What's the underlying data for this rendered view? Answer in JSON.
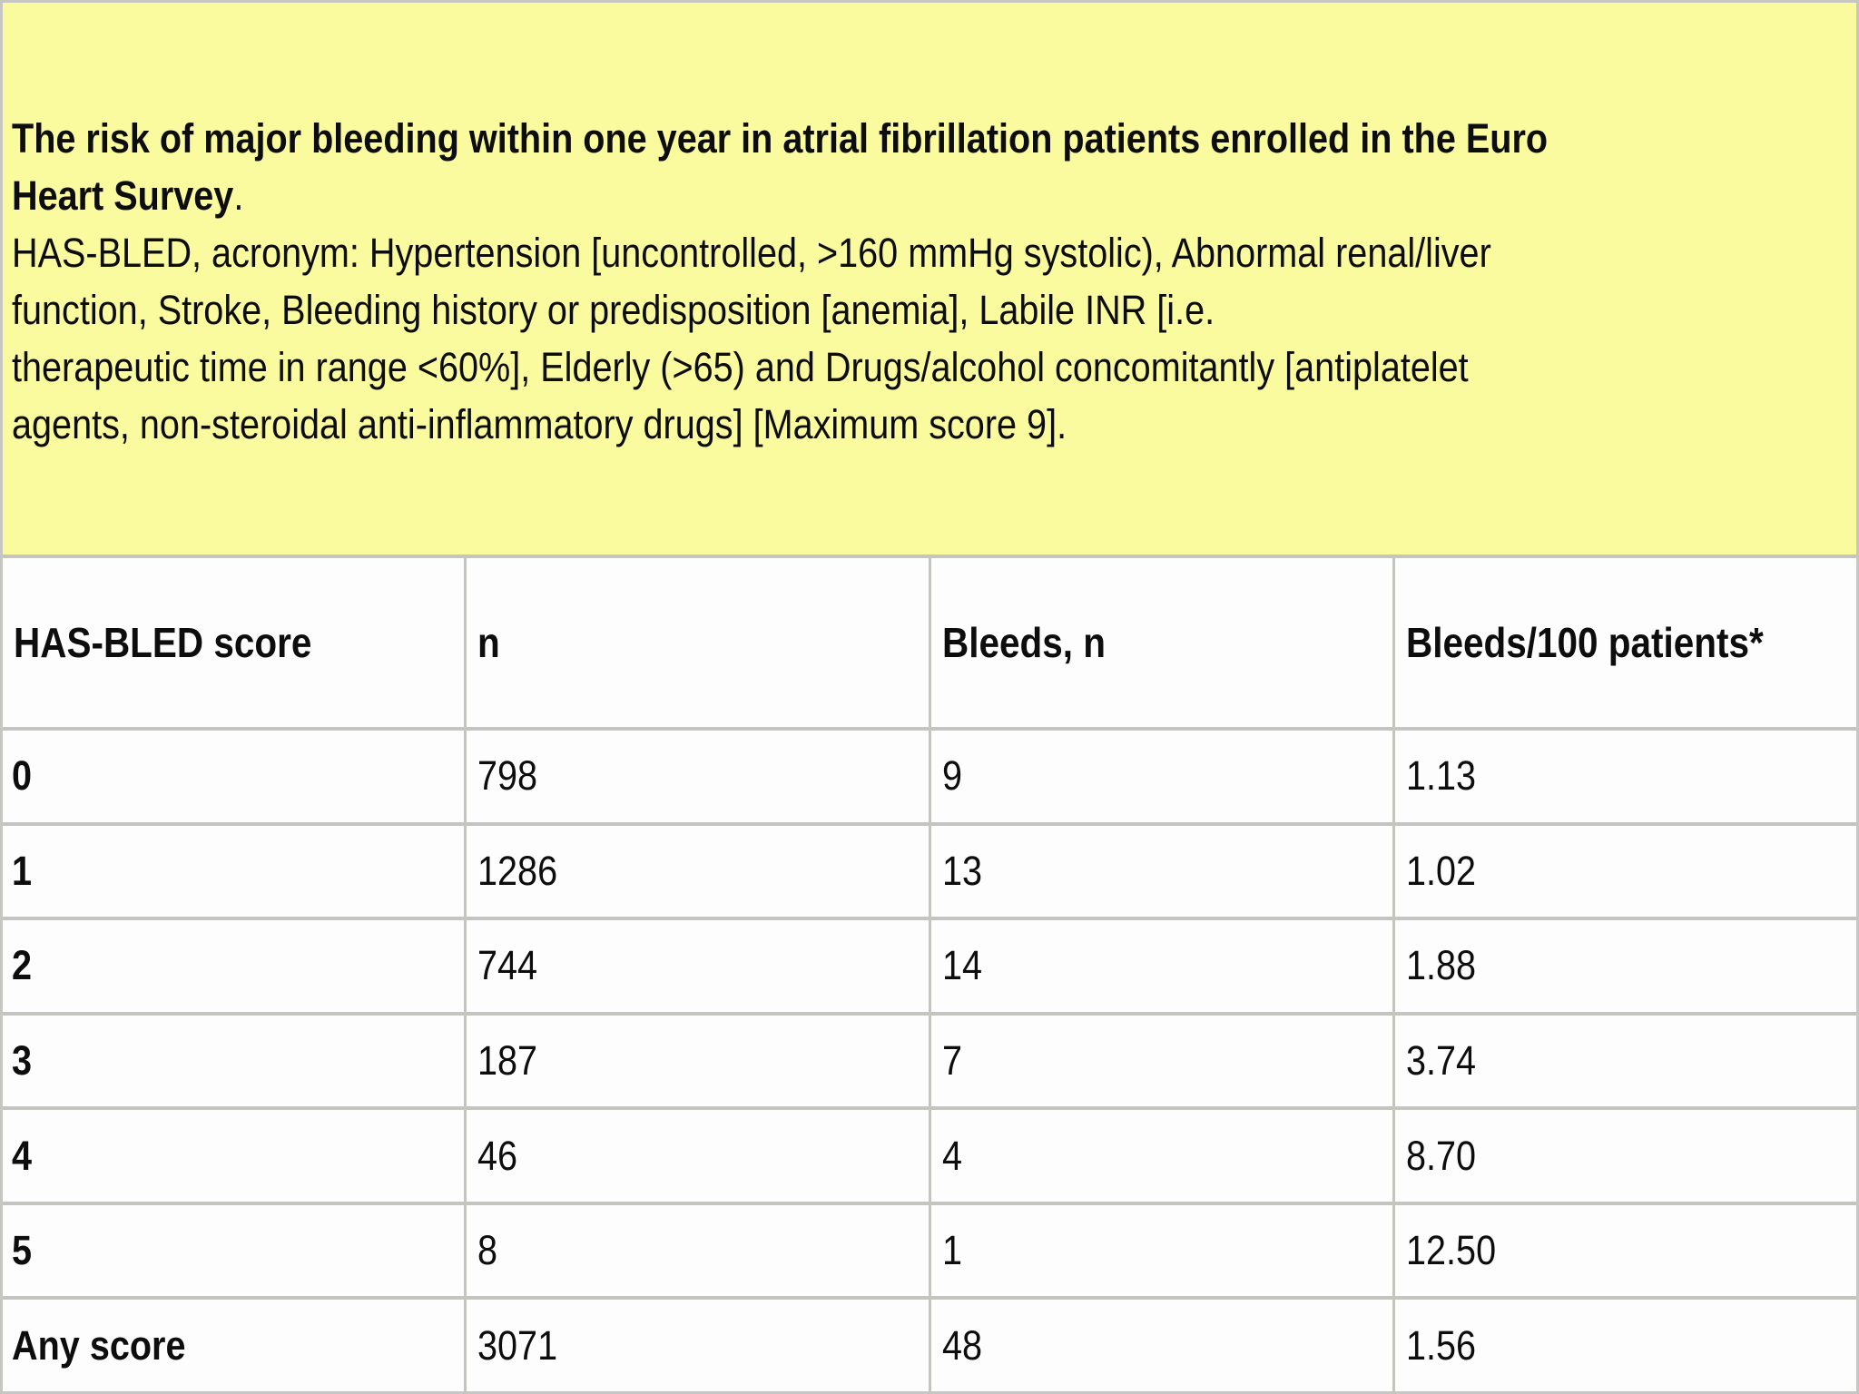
{
  "caption": {
    "lines": [
      {
        "bold": "The risk of major bleeding within one year in atrial fibrillation patients enrolled in the Euro",
        "regular": ""
      },
      {
        "bold": "Heart Survey",
        "regular": "."
      },
      {
        "bold": "",
        "regular": "HAS-BLED, acronym: Hypertension [uncontrolled, >160 mmHg systolic), Abnormal renal/liver"
      },
      {
        "bold": "",
        "regular": "function, Stroke, Bleeding history or predisposition [anemia], Labile INR [i.e."
      },
      {
        "bold": "",
        "regular": "therapeutic time in range <60%], Elderly (>65) and Drugs/alcohol concomitantly [antiplatelet"
      },
      {
        "bold": "",
        "regular": "agents, non-steroidal anti-inflammatory drugs] [Maximum score 9]."
      }
    ]
  },
  "table": {
    "columns": [
      "HAS-BLED score",
      "n",
      "Bleeds, n",
      "Bleeds/100 patients*"
    ],
    "rows": [
      {
        "score": "0",
        "n": "798",
        "bleeds": "9",
        "rate": "1.13"
      },
      {
        "score": "1",
        "n": "1286",
        "bleeds": "13",
        "rate": "1.02"
      },
      {
        "score": "2",
        "n": "744",
        "bleeds": "14",
        "rate": "1.88"
      },
      {
        "score": "3",
        "n": "187",
        "bleeds": "7",
        "rate": "3.74"
      },
      {
        "score": "4",
        "n": "46",
        "bleeds": "4",
        "rate": "8.70"
      },
      {
        "score": "5",
        "n": "8",
        "bleeds": "1",
        "rate": "12.50"
      },
      {
        "score": "Any score",
        "n": "3071",
        "bleeds": "48",
        "rate": "1.56"
      }
    ]
  },
  "colors": {
    "caption_background": "#FAFA9E",
    "gridline": "#C5C5C0",
    "cell_background": "#FDFDFD",
    "text": "#0D0D0D"
  }
}
